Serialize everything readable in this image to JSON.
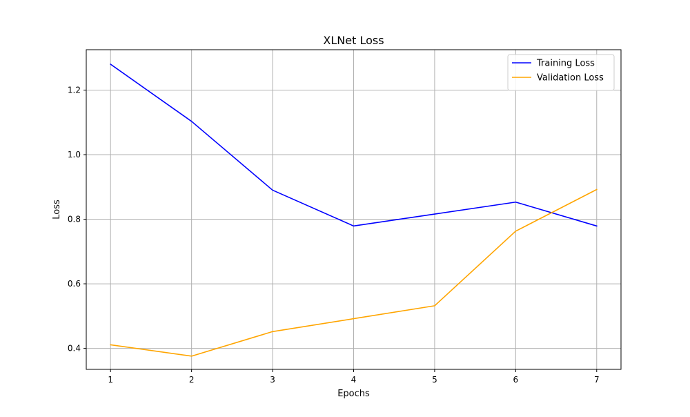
{
  "chart_data": {
    "type": "line",
    "title": "XLNet Loss",
    "xlabel": "Epochs",
    "ylabel": "Loss",
    "x": [
      1,
      2,
      3,
      4,
      5,
      6,
      7
    ],
    "xlim": [
      0.7,
      7.3
    ],
    "ylim": [
      0.335,
      1.325
    ],
    "xticks": [
      1,
      2,
      3,
      4,
      5,
      6,
      7
    ],
    "yticks": [
      0.4,
      0.6,
      0.8,
      1.0,
      1.2
    ],
    "ytick_labels": [
      "0.4",
      "0.6",
      "0.8",
      "1.0",
      "1.2"
    ],
    "grid": true,
    "legend_position": "top-right",
    "series": [
      {
        "name": "Training Loss",
        "color": "#0000ff",
        "values": [
          1.28,
          1.103,
          0.89,
          0.779,
          0.816,
          0.853,
          0.779
        ]
      },
      {
        "name": "Validation Loss",
        "color": "#ffa500",
        "values": [
          0.411,
          0.376,
          0.452,
          0.492,
          0.532,
          0.763,
          0.892
        ]
      }
    ]
  }
}
